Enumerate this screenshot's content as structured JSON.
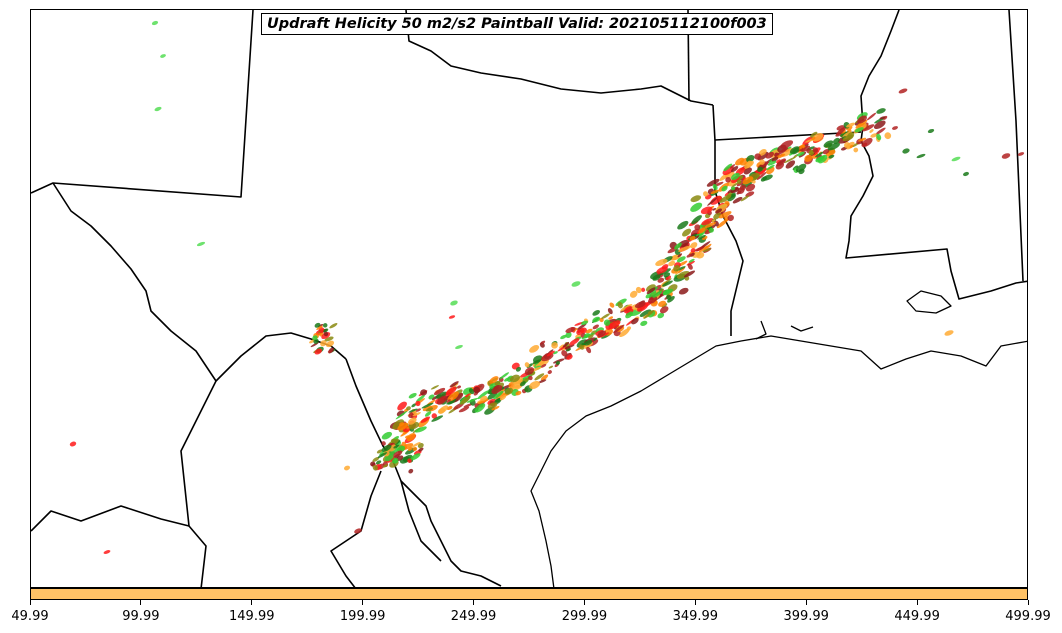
{
  "map": {
    "title": "Updraft Helicity 50 m2/s2 Paintball Valid: 202105112100f003",
    "colors": {
      "bright_green": "#33cc33",
      "light_green": "#55dd55",
      "dark_green": "#1a7a1a",
      "olive": "#8a8a10",
      "orange": "#ff8000",
      "light_orange": "#ffaa33",
      "red": "#ff1a1a",
      "dark_red": "#b22222",
      "brown_red": "#8b1a1a"
    }
  },
  "colorbar": {
    "color": "#ffc266",
    "ticks": [
      "49.99",
      "99.99",
      "149.99",
      "199.99",
      "249.99",
      "299.99",
      "349.99",
      "399.99",
      "449.99",
      "499.99"
    ],
    "range": [
      49.99,
      499.99
    ]
  }
}
